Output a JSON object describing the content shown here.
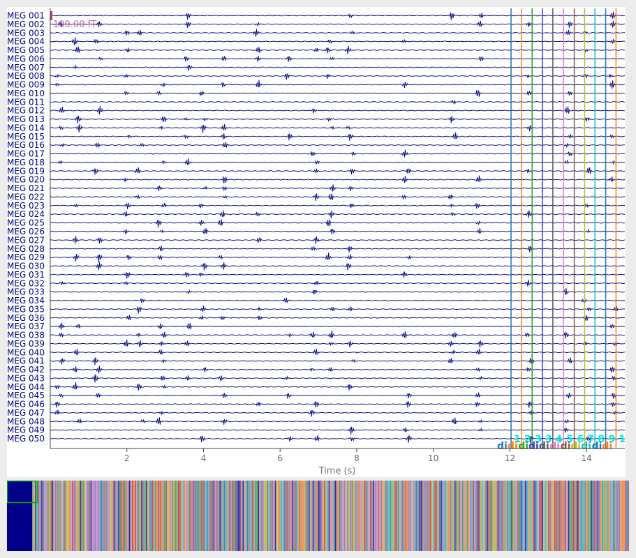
{
  "chart_data": {
    "type": "line",
    "title": "",
    "xlabel": "Time (s)",
    "ylabel": "",
    "xlim": [
      0,
      15
    ],
    "x_ticks": [
      "2",
      "4",
      "6",
      "8",
      "10",
      "12",
      "14"
    ],
    "scale_label": "100.00 fT",
    "grid": false,
    "channels": [
      "MEG 001",
      "MEG 002",
      "MEG 003",
      "MEG 004",
      "MEG 005",
      "MEG 006",
      "MEG 007",
      "MEG 008",
      "MEG 009",
      "MEG 010",
      "MEG 011",
      "MEG 012",
      "MEG 013",
      "MEG 014",
      "MEG 015",
      "MEG 016",
      "MEG 017",
      "MEG 018",
      "MEG 019",
      "MEG 020",
      "MEG 021",
      "MEG 022",
      "MEG 023",
      "MEG 024",
      "MEG 025",
      "MEG 026",
      "MEG 027",
      "MEG 028",
      "MEG 029",
      "MEG 030",
      "MEG 031",
      "MEG 032",
      "MEG 033",
      "MEG 034",
      "MEG 035",
      "MEG 036",
      "MEG 037",
      "MEG 038",
      "MEG 039",
      "MEG 040",
      "MEG 041",
      "MEG 042",
      "MEG 043",
      "MEG 044",
      "MEG 045",
      "MEG 046",
      "MEG 047",
      "MEG 048",
      "MEG 049",
      "MEG 050"
    ],
    "annotations": [
      {
        "time": 12.03,
        "label": "1",
        "description": "di",
        "color": "#1f77b4"
      },
      {
        "time": 12.3,
        "label": "2",
        "description": "di",
        "color": "#ff7f0e"
      },
      {
        "time": 12.58,
        "label": "3",
        "description": "di",
        "color": "#2ca02c"
      },
      {
        "time": 12.85,
        "label": "3",
        "description": "di",
        "color": "#3a3ad0"
      },
      {
        "time": 13.12,
        "label": "4",
        "description": "di",
        "color": "#5a5a5a"
      },
      {
        "time": 13.4,
        "label": "5",
        "description": "di",
        "color": "#e377c2"
      },
      {
        "time": 13.68,
        "label": "6",
        "description": "di",
        "color": "#8c564b"
      },
      {
        "time": 13.95,
        "label": "7",
        "description": "di",
        "color": "#bcbd22"
      },
      {
        "time": 14.22,
        "label": "8",
        "description": "di",
        "color": "#17becf"
      },
      {
        "time": 14.5,
        "label": "9",
        "description": "di",
        "color": "#1f77b4"
      },
      {
        "time": 14.77,
        "label": "1",
        "description": "di",
        "color": "#ff7f0e"
      }
    ]
  },
  "colors": {
    "trace": "#000080",
    "channel_label": "#000080",
    "overview_block": "#00008b",
    "viewport_box": "#00aa00"
  }
}
